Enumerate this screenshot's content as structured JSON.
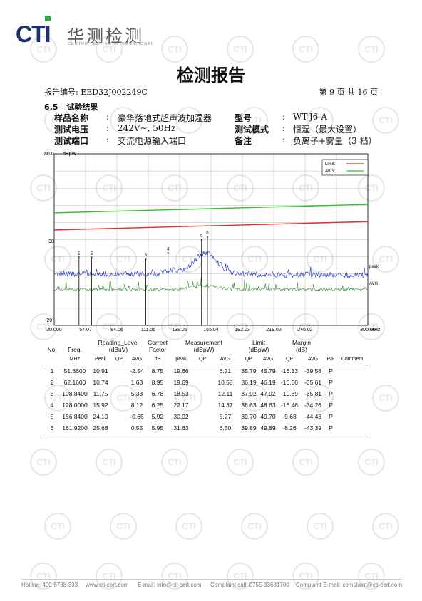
{
  "header": {
    "logo_text": "CTI",
    "brand_cn": "华测检测",
    "brand_en": "CENTRE TESTING INTERNATIONAL",
    "title": "检测报告",
    "report_no": "报告编号: EED32J002249C",
    "page_info": "第 9 页 共 16 页"
  },
  "section": {
    "number": "6.5",
    "title": "试验结果"
  },
  "info": {
    "sample_label": "样品名称",
    "sample_value": "豪华落地式超声波加湿器",
    "model_label": "型号",
    "model_value": "WT-J6-A",
    "voltage_label": "测试电压",
    "voltage_value": "242V~, 50Hz",
    "mode_label": "测试模式",
    "mode_value": "恒湿（最大设置）",
    "port_label": "测试端口",
    "port_value": "交流电源输入端口",
    "note_label": "备注",
    "note_value": "负离子+雾量（3 档）",
    "colon": ":"
  },
  "chart_data": {
    "type": "line",
    "y_unit": "dBpW",
    "x_unit": "MHz",
    "xlim": [
      30,
      300
    ],
    "ylim": [
      -20,
      80
    ],
    "y_ticks": [
      "80.0",
      "30",
      "-20"
    ],
    "x_ticks": [
      "30.000",
      "57.07",
      "84.06",
      "111.06",
      "138.05",
      "165.04",
      "192.03",
      "219.02",
      "246.02",
      "300.00"
    ],
    "legend": [
      {
        "name": "Limit:",
        "color": "#e0302a"
      },
      {
        "name": "AVG:",
        "color": "#27c727"
      }
    ],
    "trace_labels": {
      "peak": "peak",
      "avg": "AVG"
    },
    "colors": {
      "limit": "#e0302a",
      "avg_limit": "#27c727",
      "peak": "#2030d0",
      "avg": "#2e8b2e",
      "grid": "#aaaaaa"
    },
    "limit_line": {
      "x": [
        30,
        300
      ],
      "y": [
        35.6,
        40.5
      ]
    },
    "avg_limit_line": {
      "x": [
        30,
        300
      ],
      "y": [
        45.6,
        50.5
      ]
    },
    "markers": [
      {
        "label": "1",
        "x": 51.36,
        "y": 19.66
      },
      {
        "label": "2",
        "x": 62.16,
        "y": 19.69
      },
      {
        "label": "3",
        "x": 108.84,
        "y": 18.53
      },
      {
        "label": "4",
        "x": 128.0,
        "y": 22.17
      },
      {
        "label": "5",
        "x": 156.84,
        "y": 30.02
      },
      {
        "label": "6",
        "x": 161.92,
        "y": 31.63
      }
    ]
  },
  "table": {
    "headers": [
      "No.",
      "Freq.",
      "Reading_Level\n(dBuV)",
      "Correct\nFactor",
      "Measurement\n(dBpW)",
      "Limit\n(dBpW)",
      "Margin\n(dB)"
    ],
    "subheaders": [
      "",
      "MHz",
      "Peak",
      "QP",
      "AVG",
      "dB",
      "peak",
      "QP",
      "AVG",
      "QP",
      "AVG",
      "QP",
      "AVG",
      "P/F",
      "Comment"
    ],
    "rows": [
      [
        "1",
        "51.3600",
        "10.91",
        "",
        "-2.54",
        "8.75",
        "19.66",
        "",
        "6.21",
        "35.79",
        "45.79",
        "-16.13",
        "-39.58",
        "P",
        ""
      ],
      [
        "2",
        "62.1600",
        "10.74",
        "",
        "1.63",
        "8.95",
        "19.69",
        "",
        "10.58",
        "36.19",
        "46.19",
        "-16.50",
        "-35.61",
        "P",
        ""
      ],
      [
        "3",
        "108.8400",
        "11.75",
        "",
        "5.33",
        "6.78",
        "18.53",
        "",
        "12.11",
        "37.92",
        "47.92",
        "-19.39",
        "-35.81",
        "P",
        ""
      ],
      [
        "4",
        "128.0000",
        "15.92",
        "",
        "8.12",
        "6.25",
        "22.17",
        "",
        "14.37",
        "38.63",
        "48.63",
        "-16.46",
        "-34.26",
        "P",
        ""
      ],
      [
        "5",
        "156.8400",
        "24.10",
        "",
        "-0.65",
        "5.92",
        "30.02",
        "",
        "5.27",
        "39.70",
        "49.70",
        "-9.68",
        "-44.43",
        "P",
        ""
      ],
      [
        "6",
        "161.9200",
        "25.68",
        "",
        "0.55",
        "5.95",
        "31.63",
        "",
        "6.50",
        "39.89",
        "49.89",
        "-8.26",
        "-43.39",
        "P",
        ""
      ]
    ]
  },
  "footer": {
    "hotline": "Hotline: 400-6788-333",
    "web": "www.cti-cert.com",
    "email": "E-mail: info@cti-cert.com",
    "complaint_call": "Complaint call: 0755-33681700",
    "complaint_email": "Complaint E-mail: complaint@cti-cert.com"
  },
  "watermark": {
    "text": "CTI"
  }
}
